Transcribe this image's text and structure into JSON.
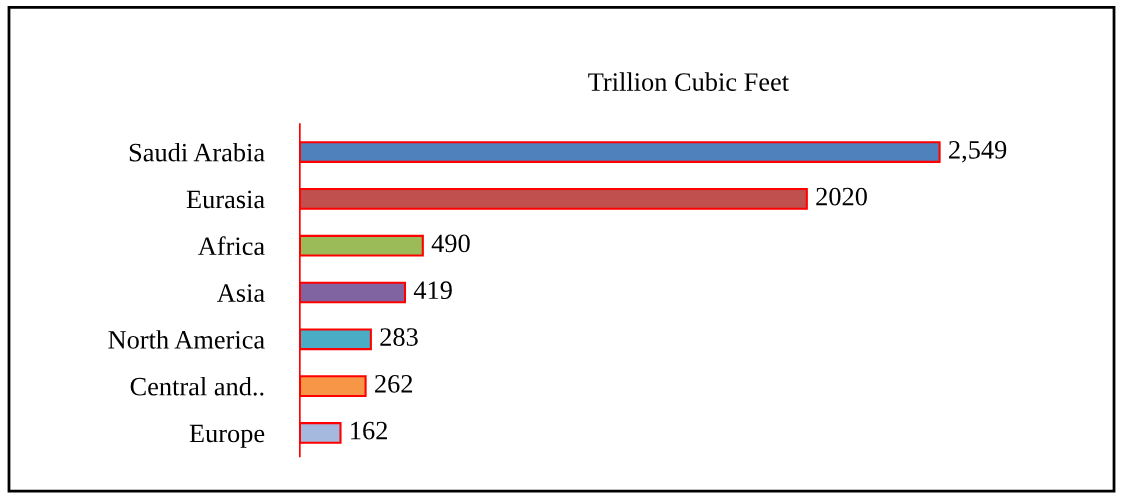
{
  "chart_data": {
    "type": "bar",
    "orientation": "horizontal",
    "title": "Trillion Cubic Feet",
    "categories": [
      "Saudi Arabia",
      "Eurasia",
      "Africa",
      "Asia",
      "North America",
      "Central and..",
      "Europe"
    ],
    "values": [
      2549,
      2020,
      490,
      419,
      283,
      262,
      162
    ],
    "colors": [
      "#4f81bd",
      "#c0504d",
      "#9bbb59",
      "#8064a2",
      "#4bacc6",
      "#f79646",
      "#a5b8de"
    ],
    "value_labels": [
      "2,549",
      "2020",
      "490",
      "419",
      "283",
      "262",
      "162"
    ],
    "grid": false,
    "legend": false
  }
}
